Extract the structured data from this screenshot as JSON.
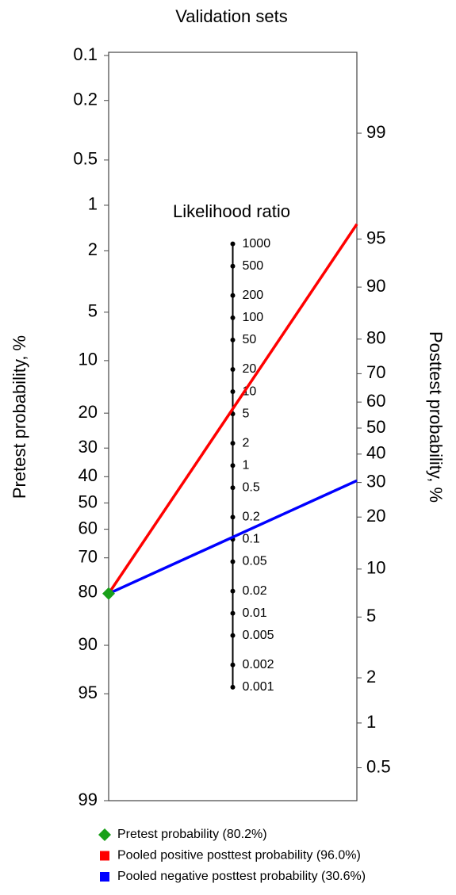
{
  "chart_data": {
    "type": "nomogram",
    "title": "Validation sets",
    "y_label": "Pretest probability, %",
    "y2_label": "Posttest probability, %",
    "lr_label": "Likelihood ratio",
    "ylim": [
      0.1,
      99
    ],
    "yticks": [
      0.1,
      0.2,
      0.5,
      1,
      2,
      5,
      10,
      20,
      30,
      40,
      50,
      60,
      70,
      80,
      90,
      95,
      99
    ],
    "y2lim": [
      0.3,
      99.7
    ],
    "y2ticks": [
      99,
      95,
      90,
      80,
      70,
      60,
      50,
      40,
      30,
      20,
      10,
      5,
      2,
      1,
      0.5
    ],
    "lr_ticks": [
      1000,
      500,
      200,
      100,
      50,
      20,
      10,
      5,
      2,
      1,
      0.5,
      0.2,
      0.1,
      0.05,
      0.02,
      0.01,
      0.005,
      0.002,
      0.001
    ],
    "series": [
      {
        "name": "Pretest probability (80.2%)",
        "color": "#19a019",
        "values": [
          80.2
        ]
      },
      {
        "name": "Pooled positive posttest probability (96.0%)",
        "color": "#ff0000",
        "values": [
          96.0
        ]
      },
      {
        "name": "Pooled negative posttest probability (30.6%)",
        "color": "#0000ff",
        "values": [
          30.6
        ]
      }
    ]
  }
}
